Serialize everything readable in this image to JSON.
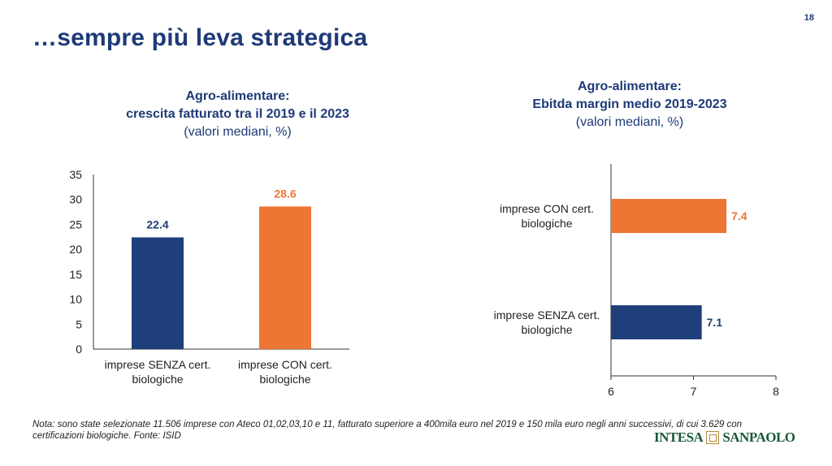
{
  "page": {
    "number": "18",
    "title": "…sempre più leva strategica",
    "note": "Nota: sono state selezionate 11.506 imprese con Ateco 01,02,03,10 e 11, fatturato superiore a 400mila euro nel 2019 e 150 mila euro negli anni successivi, di cui 3.629 con certificazioni biologiche. Fonte: ISID",
    "logo": {
      "left": "INTESA",
      "right": "SANPAOLO"
    }
  },
  "chart_data": [
    {
      "type": "bar",
      "orientation": "vertical",
      "title_lines": [
        "Agro-alimentare:",
        "crescita fatturato tra il 2019 e il 2023"
      ],
      "subtitle": "(valori mediani, %)",
      "categories": [
        [
          "imprese SENZA cert.",
          "biologiche"
        ],
        [
          "imprese CON cert.",
          "biologiche"
        ]
      ],
      "values": [
        22.4,
        28.6
      ],
      "value_labels": [
        "22.4",
        "28.6"
      ],
      "colors": [
        "#1e3f7a",
        "#ee7634"
      ],
      "ylim": [
        0,
        35
      ],
      "yticks": [
        "0",
        "5",
        "10",
        "15",
        "20",
        "25",
        "30",
        "35"
      ],
      "grid": false
    },
    {
      "type": "bar",
      "orientation": "horizontal",
      "title_lines": [
        "Agro-alimentare:",
        "Ebitda margin medio 2019-2023"
      ],
      "subtitle": "(valori mediani, %)",
      "categories": [
        [
          "imprese CON cert.",
          "biologiche"
        ],
        [
          "imprese SENZA cert.",
          "biologiche"
        ]
      ],
      "values": [
        7.4,
        7.1
      ],
      "value_labels": [
        "7.4",
        "7.1"
      ],
      "colors": [
        "#ee7634",
        "#1e3f7a"
      ],
      "xlim": [
        6,
        8
      ],
      "xticks": [
        "6",
        "7",
        "8"
      ],
      "grid": false
    }
  ]
}
